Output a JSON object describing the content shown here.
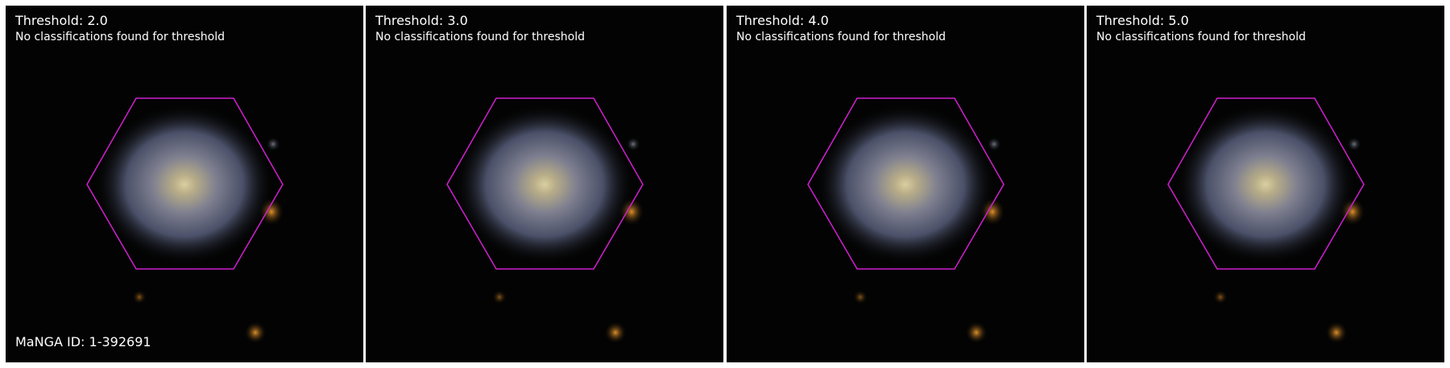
{
  "panels": [
    {
      "title": "Threshold: 2.0",
      "message": "No classifications found for threshold"
    },
    {
      "title": "Threshold: 3.0",
      "message": "No classifications found for threshold"
    },
    {
      "title": "Threshold: 4.0",
      "message": "No classifications found for threshold"
    },
    {
      "title": "Threshold: 5.0",
      "message": "No classifications found for threshold"
    }
  ],
  "manga_id": "MaNGA ID: 1-392691",
  "colors": {
    "hexagon_outline": "#d020d0",
    "background": "#030303",
    "text": "#ffffff"
  }
}
